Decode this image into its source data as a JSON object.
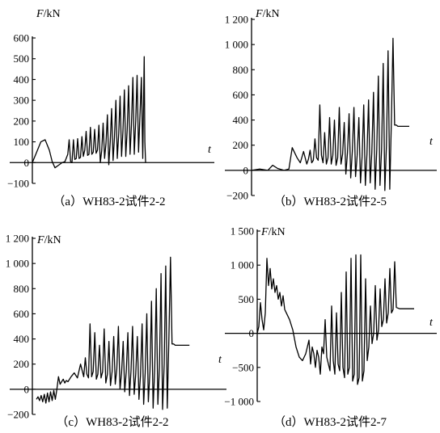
{
  "chart_data": [
    {
      "type": "line",
      "panel": "a",
      "caption": "（a）WH83-2试件2-2",
      "ylabel": "F/kN",
      "xlabel": "t",
      "ylim": [
        -100,
        600
      ],
      "yticks": [
        -100,
        0,
        100,
        200,
        300,
        400,
        500,
        600
      ],
      "ytick_labels": [
        "−100",
        "0",
        "100",
        "200",
        "300",
        "400",
        "500",
        "600"
      ],
      "xlim": [
        0,
        100
      ],
      "series": [
        {
          "x": [
            0,
            3,
            6,
            9,
            12,
            14,
            16,
            18,
            20,
            21,
            23,
            25,
            26,
            27,
            28,
            29,
            30,
            31,
            32,
            33,
            34,
            35,
            36,
            37,
            38,
            39,
            40,
            41,
            42,
            43,
            44,
            45,
            46,
            47,
            48,
            49,
            50,
            51,
            52,
            53,
            54,
            55,
            56,
            57,
            58,
            59,
            60,
            61,
            62,
            63,
            64,
            65,
            66,
            67,
            68,
            69,
            70,
            71,
            72,
            73,
            74,
            75,
            76,
            77,
            78,
            79,
            79.5,
            80
          ],
          "values": [
            0,
            50,
            100,
            110,
            60,
            5,
            -25,
            -15,
            -5,
            0,
            5,
            40,
            110,
            5,
            0,
            110,
            15,
            20,
            115,
            20,
            25,
            125,
            30,
            60,
            150,
            35,
            40,
            170,
            40,
            50,
            160,
            45,
            60,
            180,
            0,
            60,
            190,
            20,
            90,
            230,
            -10,
            100,
            260,
            10,
            120,
            300,
            20,
            140,
            320,
            30,
            150,
            350,
            30,
            160,
            370,
            40,
            180,
            410,
            40,
            200,
            420,
            50,
            220,
            410,
            20,
            510,
            100,
            0
          ]
        }
      ]
    },
    {
      "type": "line",
      "panel": "b",
      "caption": "（b）WH83-2试件2-5",
      "ylabel": "F/kN",
      "xlabel": "t",
      "ylim": [
        -200,
        1200
      ],
      "yticks": [
        -200,
        0,
        200,
        400,
        600,
        800,
        1000,
        1200
      ],
      "ytick_labels": [
        "−200",
        "0",
        "200",
        "400",
        "600",
        "800",
        "1 000",
        "1 200"
      ],
      "xlim": [
        0,
        100
      ],
      "series": [
        {
          "x": [
            0,
            5,
            10,
            13,
            16,
            20,
            23,
            25,
            28,
            30,
            32,
            34,
            35,
            36,
            37,
            38,
            39,
            40,
            41,
            42,
            43,
            44,
            45,
            46,
            47,
            48,
            49,
            50,
            51,
            52,
            53,
            54,
            55,
            56,
            57,
            58,
            59,
            60,
            61,
            62,
            63,
            64,
            65,
            66,
            67,
            68,
            69,
            70,
            71,
            72,
            73,
            74,
            75,
            76,
            77,
            78,
            79,
            80,
            81,
            82,
            83,
            84,
            85,
            86,
            87,
            88,
            89,
            90,
            92,
            95,
            97
          ],
          "values": [
            0,
            10,
            0,
            40,
            15,
            0,
            10,
            180,
            100,
            60,
            150,
            50,
            90,
            160,
            60,
            80,
            250,
            100,
            80,
            520,
            120,
            60,
            300,
            50,
            100,
            420,
            50,
            120,
            400,
            40,
            100,
            500,
            50,
            130,
            380,
            -30,
            140,
            450,
            -60,
            150,
            500,
            -50,
            120,
            420,
            -100,
            110,
            520,
            -120,
            130,
            560,
            -100,
            140,
            620,
            -150,
            160,
            750,
            -120,
            170,
            850,
            -160,
            200,
            950,
            -150,
            400,
            1050,
            360,
            360,
            350,
            350,
            350,
            350
          ]
        }
      ]
    },
    {
      "type": "line",
      "panel": "c",
      "caption": "（c）WH83-2试件2-2",
      "ylabel": "F/kN",
      "xlabel": "t",
      "ylim": [
        -200,
        1200
      ],
      "yticks": [
        -200,
        0,
        200,
        400,
        600,
        800,
        1000,
        1200
      ],
      "ytick_labels": [
        "−200",
        "0",
        "200",
        "400",
        "600",
        "800",
        "1 000",
        "1 200"
      ],
      "xlim": [
        0,
        100
      ],
      "series": [
        {
          "x": [
            0,
            1,
            2,
            3,
            4,
            5,
            6,
            7,
            8,
            9,
            10,
            11,
            12,
            13,
            14,
            15,
            16,
            17,
            18,
            19,
            20,
            22,
            24,
            26,
            28,
            30,
            31,
            32,
            33,
            34,
            35,
            36,
            37,
            38,
            39,
            40,
            41,
            42,
            43,
            44,
            45,
            46,
            47,
            48,
            49,
            50,
            51,
            52,
            53,
            54,
            55,
            56,
            57,
            58,
            59,
            60,
            61,
            62,
            63,
            64,
            65,
            66,
            67,
            68,
            69,
            70,
            71,
            72,
            73,
            74,
            75,
            76,
            77,
            78,
            79,
            80,
            81,
            82,
            83,
            84,
            85,
            86,
            87,
            88,
            89,
            90,
            92,
            95,
            97
          ],
          "values": [
            -80,
            -60,
            -90,
            -50,
            -100,
            -40,
            -110,
            -30,
            -100,
            -20,
            -90,
            -10,
            -80,
            0,
            100,
            40,
            60,
            80,
            50,
            70,
            60,
            100,
            130,
            90,
            200,
            100,
            250,
            120,
            90,
            520,
            100,
            140,
            450,
            80,
            120,
            350,
            90,
            140,
            480,
            50,
            120,
            380,
            30,
            140,
            420,
            40,
            160,
            500,
            0,
            130,
            380,
            -20,
            140,
            450,
            -50,
            150,
            500,
            -40,
            120,
            420,
            -80,
            110,
            520,
            -120,
            130,
            600,
            -100,
            140,
            700,
            -150,
            160,
            800,
            -120,
            170,
            920,
            -160,
            200,
            980,
            -150,
            400,
            1050,
            360,
            360,
            350,
            350,
            350,
            350,
            350,
            350
          ]
        }
      ]
    },
    {
      "type": "line",
      "panel": "d",
      "caption": "（d）WH83-2试件2-7",
      "ylabel": "F/kN",
      "xlabel": "t",
      "ylim": [
        -1000,
        1500
      ],
      "yticks": [
        -1000,
        -500,
        0,
        500,
        1000,
        1500
      ],
      "ytick_labels": [
        "−1 000",
        "−500",
        "0",
        "500",
        "1 000",
        "1 500"
      ],
      "xlim": [
        0,
        100
      ],
      "series": [
        {
          "x": [
            0,
            1,
            2,
            3,
            4,
            5,
            6,
            7,
            8,
            9,
            10,
            11,
            12,
            13,
            14,
            15,
            16,
            17,
            18,
            20,
            22,
            24,
            26,
            28,
            30,
            31,
            32,
            33,
            34,
            35,
            36,
            37,
            38,
            39,
            40,
            41,
            42,
            43,
            44,
            45,
            46,
            47,
            48,
            49,
            50,
            51,
            52,
            53,
            54,
            55,
            56,
            57,
            58,
            59,
            60,
            61,
            62,
            63,
            64,
            65,
            66,
            67,
            68,
            69,
            70,
            71,
            72,
            73,
            74,
            75,
            76,
            77,
            78,
            79,
            80,
            81,
            82,
            83,
            84,
            85,
            86,
            87,
            88,
            89,
            90,
            92,
            95,
            97
          ],
          "values": [
            0,
            100,
            450,
            200,
            50,
            300,
            1100,
            700,
            950,
            650,
            800,
            600,
            700,
            500,
            600,
            400,
            550,
            350,
            300,
            200,
            50,
            -200,
            -350,
            -400,
            -300,
            -200,
            -100,
            -450,
            -200,
            -300,
            -500,
            -250,
            -350,
            -600,
            -200,
            -300,
            200,
            -350,
            -450,
            -550,
            400,
            -400,
            -600,
            300,
            -450,
            -550,
            600,
            -500,
            -650,
            900,
            -600,
            -500,
            1100,
            -700,
            -600,
            1150,
            -750,
            -650,
            1150,
            -700,
            -550,
            800,
            -400,
            -200,
            400,
            -150,
            0,
            700,
            -100,
            50,
            650,
            100,
            200,
            800,
            150,
            300,
            950,
            300,
            350,
            1050,
            380,
            370,
            360,
            360,
            360,
            360,
            360,
            360
          ]
        }
      ]
    }
  ]
}
